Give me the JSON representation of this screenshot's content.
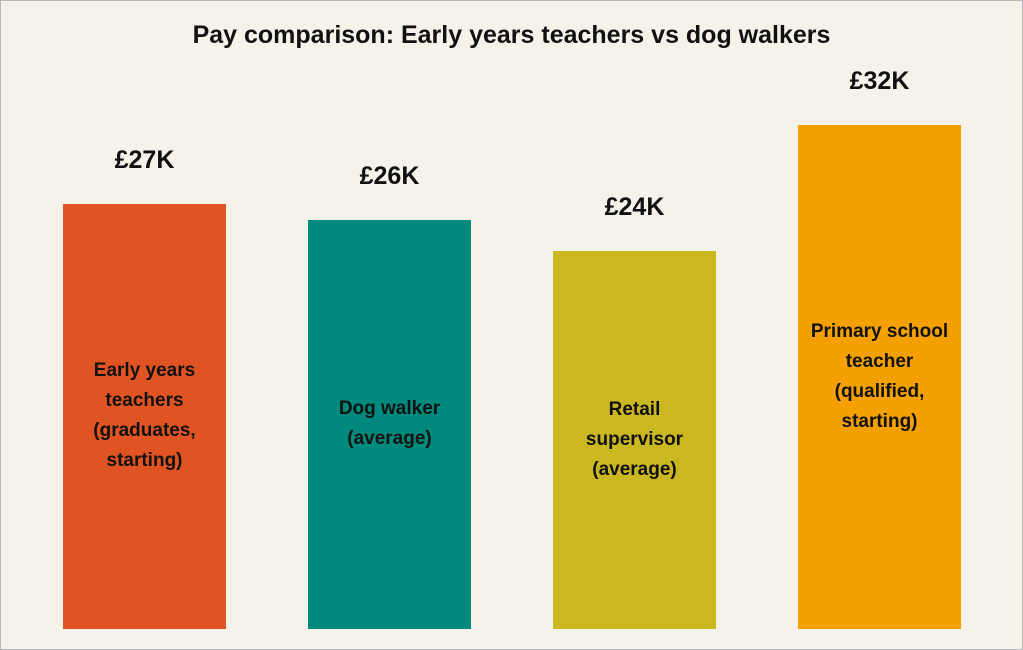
{
  "chart_data": {
    "type": "bar",
    "title": "Pay comparison: Early years teachers vs dog walkers",
    "categories": [
      "Early years teachers (graduates, starting)",
      "Dog walker (average)",
      "Retail supervisor (average)",
      "Primary school teacher (qualified, starting)"
    ],
    "values": [
      27,
      26,
      24,
      32
    ],
    "value_labels": [
      "£27K",
      "£26K",
      "£24K",
      "£32K"
    ],
    "colors": [
      "#e05424",
      "#008a7e",
      "#cbb720",
      "#f4a000"
    ]
  }
}
